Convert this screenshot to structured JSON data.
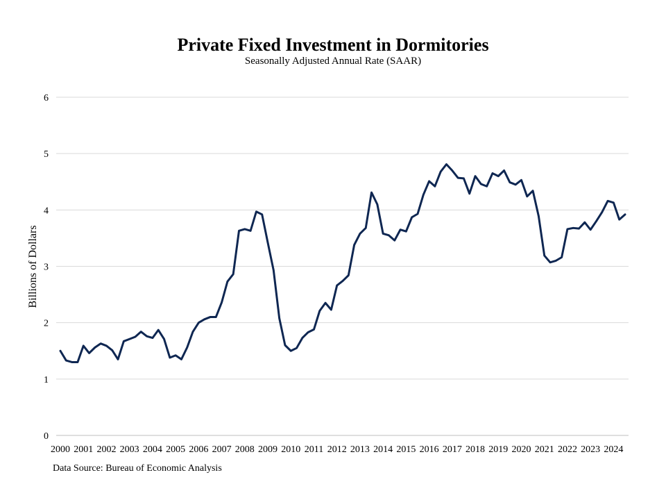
{
  "chart_data": {
    "type": "line",
    "title": "Private Fixed Investment in Dormitories",
    "subtitle": "Seasonally Adjusted Annual Rate (SAAR)",
    "ylabel": "Billions of Dollars",
    "xlabel": "",
    "ylim": [
      0,
      6
    ],
    "y_ticks": [
      "0",
      "1",
      "2",
      "3",
      "4",
      "5",
      "6"
    ],
    "x_ticks": [
      "2000",
      "2001",
      "2002",
      "2003",
      "2004",
      "2005",
      "2006",
      "2007",
      "2008",
      "2009",
      "2010",
      "2011",
      "2012",
      "2013",
      "2014",
      "2015",
      "2016",
      "2017",
      "2018",
      "2019",
      "2020",
      "2021",
      "2022",
      "2023",
      "2024"
    ],
    "grid": true,
    "legend": "none",
    "frequency": "quarterly",
    "start": "2000-Q1",
    "line_color": "#0f2752",
    "series": [
      {
        "name": "Private Fixed Investment in Dormitories",
        "values": [
          1.5,
          1.33,
          1.3,
          1.3,
          1.59,
          1.46,
          1.56,
          1.63,
          1.59,
          1.51,
          1.35,
          1.67,
          1.71,
          1.75,
          1.84,
          1.76,
          1.73,
          1.87,
          1.71,
          1.38,
          1.42,
          1.35,
          1.56,
          1.84,
          2.0,
          2.06,
          2.1,
          2.1,
          2.36,
          2.73,
          2.86,
          3.63,
          3.66,
          3.63,
          3.97,
          3.92,
          3.42,
          2.93,
          2.08,
          1.6,
          1.5,
          1.55,
          1.73,
          1.83,
          1.88,
          2.21,
          2.35,
          2.23,
          2.66,
          2.74,
          2.84,
          3.38,
          3.58,
          3.68,
          4.31,
          4.1,
          3.58,
          3.55,
          3.46,
          3.65,
          3.62,
          3.87,
          3.93,
          4.27,
          4.51,
          4.42,
          4.68,
          4.81,
          4.7,
          4.57,
          4.56,
          4.29,
          4.6,
          4.46,
          4.42,
          4.65,
          4.6,
          4.7,
          4.49,
          4.45,
          4.53,
          4.24,
          4.34,
          3.89,
          3.19,
          3.07,
          3.1,
          3.16,
          3.66,
          3.68,
          3.67,
          3.78,
          3.65,
          3.8,
          3.96,
          4.16,
          4.13,
          3.83,
          3.92
        ]
      }
    ]
  },
  "source": "Data Source: Bureau of Economic Analysis"
}
